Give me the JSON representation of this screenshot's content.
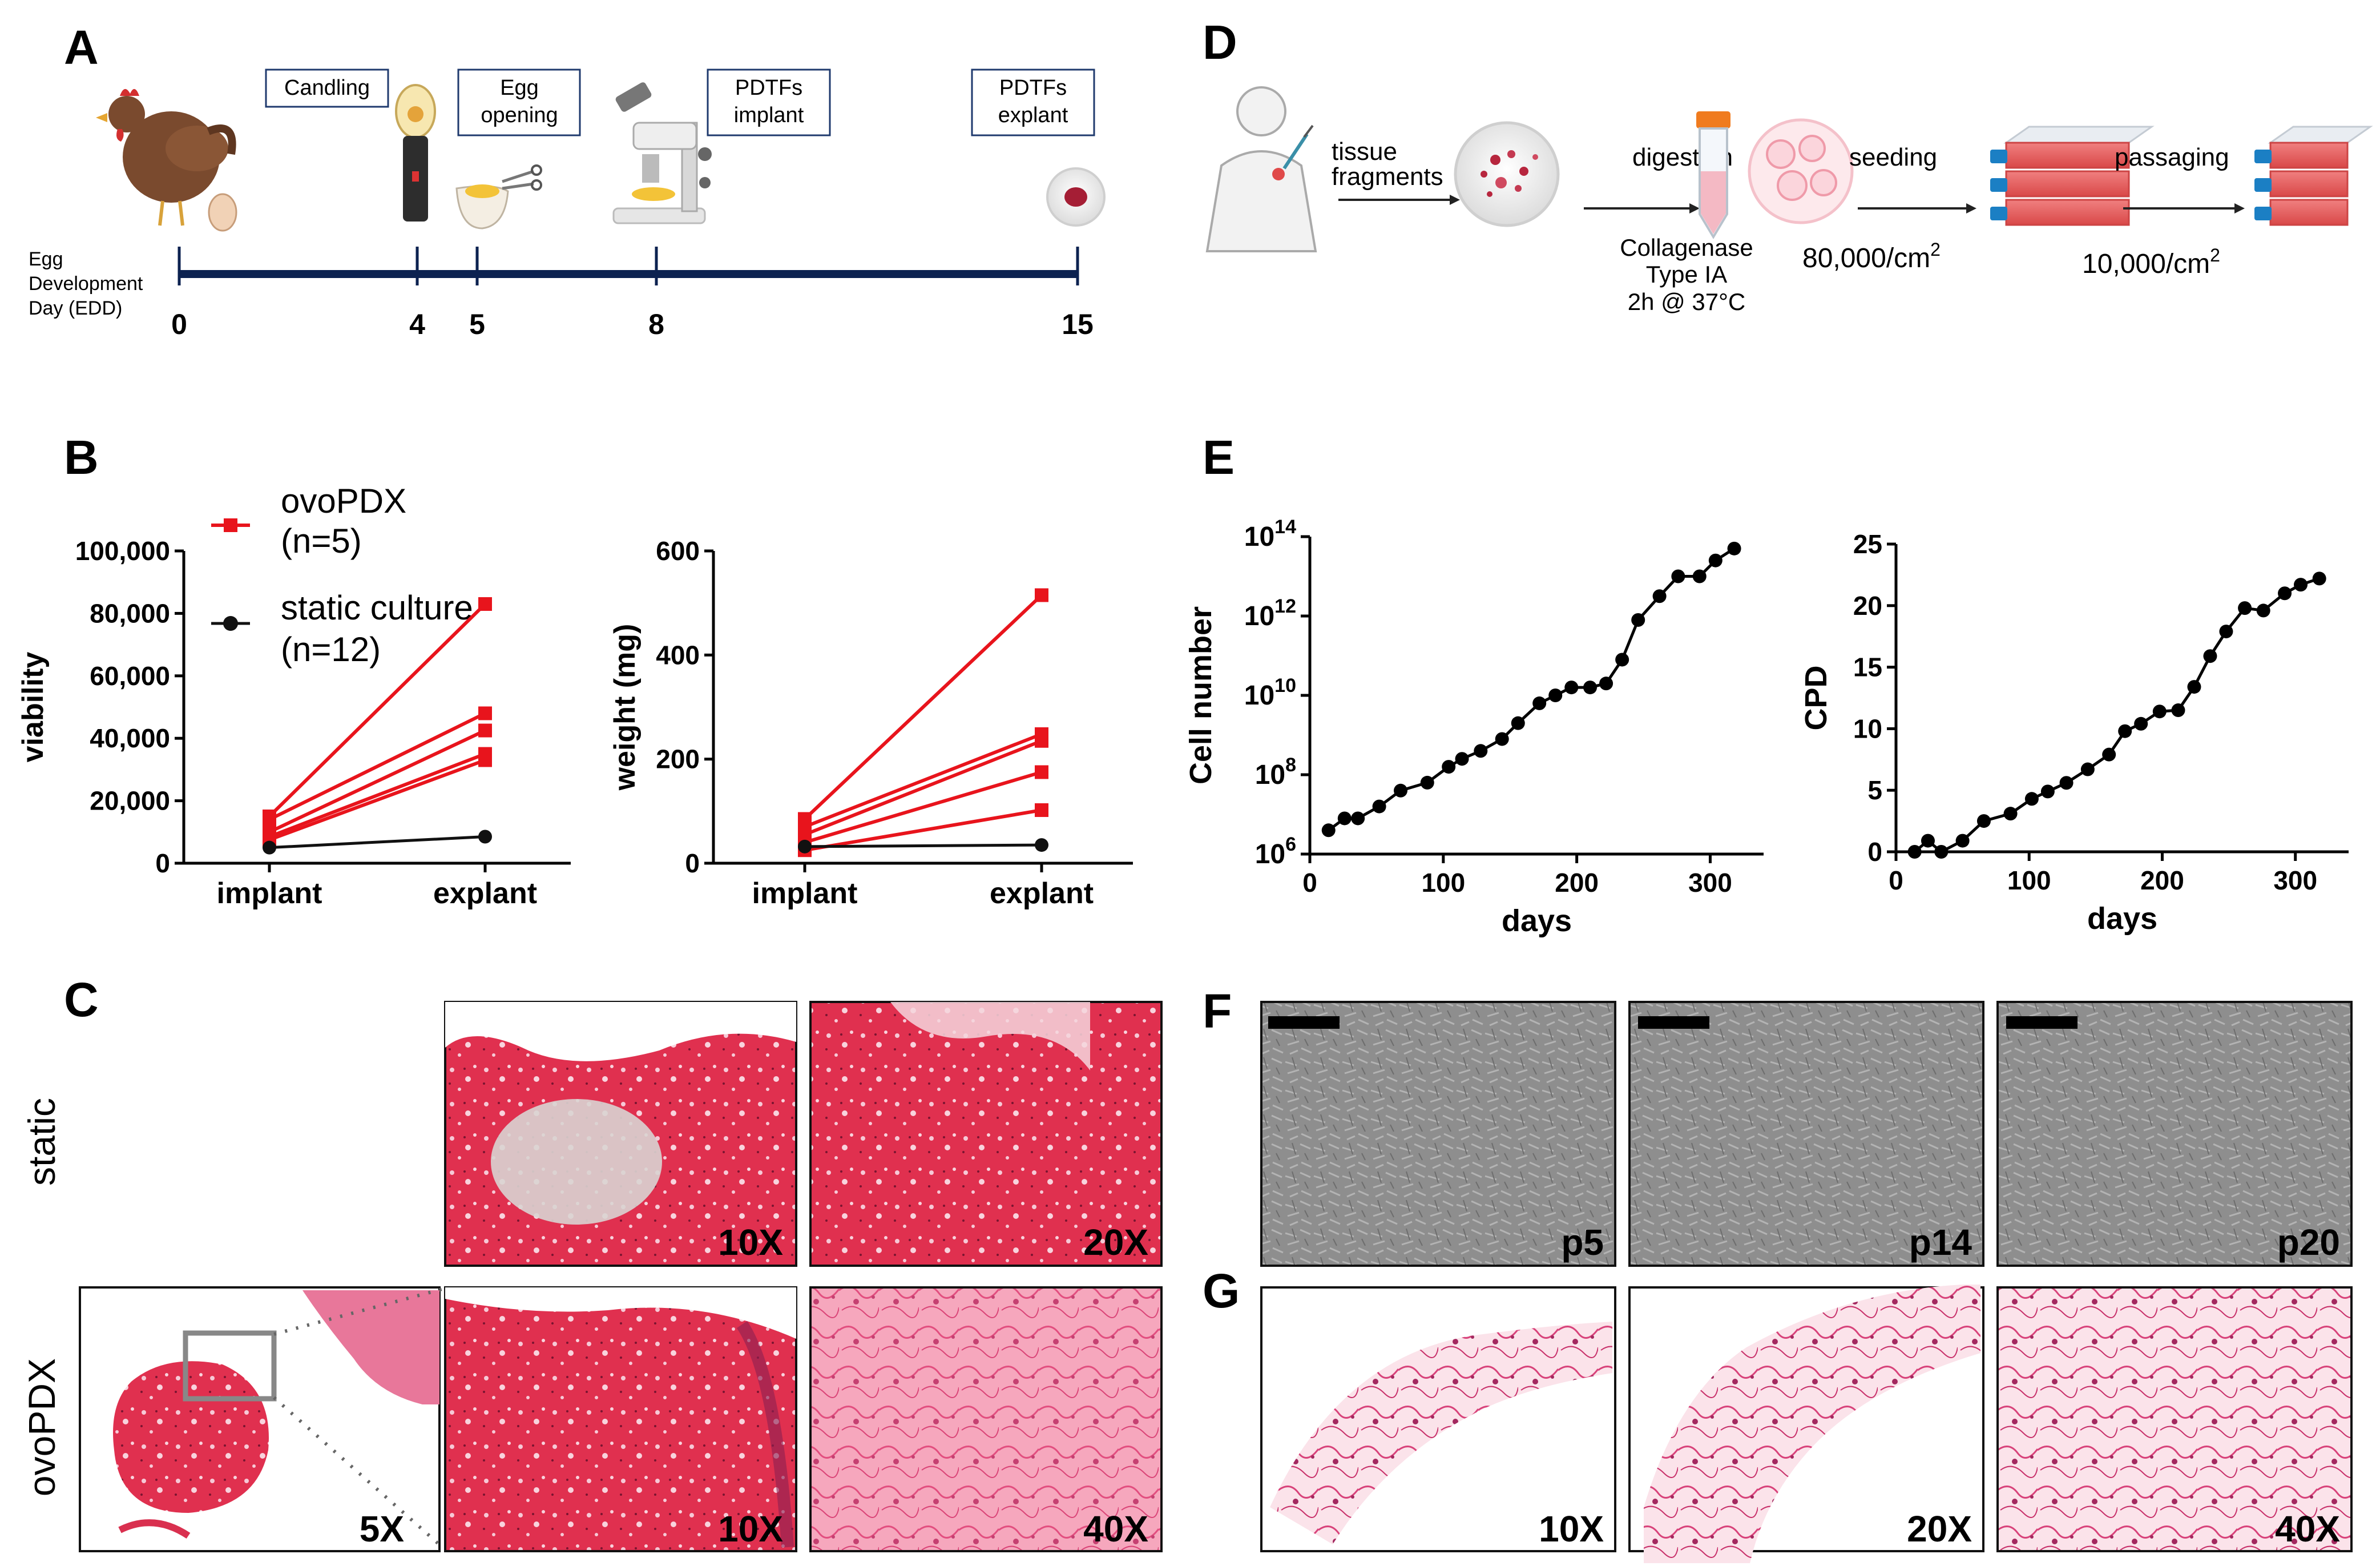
{
  "colors": {
    "ovo": "#e8141c",
    "static": "#111111",
    "navy": "#0c2250",
    "stain": "#e0304f",
    "stain_light": "#f3b7c9",
    "micro": "#8f8f8f"
  },
  "panels": {
    "A": "A",
    "B": "B",
    "C": "C",
    "D": "D",
    "E": "E",
    "F": "F",
    "G": "G"
  },
  "timeline": {
    "axis_label": [
      "Egg",
      "Development",
      "Day (EDD)"
    ],
    "ticks": [
      "0",
      "4",
      "5",
      "8",
      "15"
    ],
    "steps": [
      {
        "lines": [
          "Candling"
        ]
      },
      {
        "lines": [
          "Egg",
          "opening"
        ]
      },
      {
        "lines": [
          "PDTFs",
          "implant"
        ]
      },
      {
        "lines": [
          "PDTFs",
          "explant"
        ]
      }
    ],
    "icons": [
      "hen-icon",
      "egg-icon",
      "candling-lamp-icon",
      "open-egg-icon",
      "microscope-icon",
      "petri-dish-icon"
    ]
  },
  "workflow": {
    "labels": {
      "tissue": [
        "tissue",
        "fragments"
      ],
      "digestion": "digestion",
      "seeding": "seeding",
      "passaging": "passaging"
    },
    "conditions": [
      "Collagenase",
      "Type IA",
      "2h @ 37°C"
    ],
    "seeding_density": {
      "value": "80,000/cm",
      "sup": "2"
    },
    "passaging_density": {
      "value": "10,000/cm",
      "sup": "2"
    },
    "icons": [
      "human-body-icon",
      "petri-dish-fragments-icon",
      "centrifuge-tube-icon",
      "cells-icon",
      "flask-stack-icon",
      "flask-stack-icon"
    ]
  },
  "chart_data": [
    {
      "id": "viability",
      "type": "line",
      "legend": [
        {
          "name": [
            "ovoPDX",
            "(n=5)"
          ],
          "marker": "square",
          "color": "#e8141c"
        },
        {
          "name": [
            "static culture",
            "(n=12)"
          ],
          "marker": "circle",
          "color": "#111111"
        }
      ],
      "ylabel": "viability",
      "categories": [
        "implant",
        "explant"
      ],
      "ylim": [
        0,
        100000
      ],
      "ytick_values": [
        0,
        20000,
        40000,
        60000,
        80000,
        100000
      ],
      "ytick_labels": [
        "0",
        "20,000",
        "40,000",
        "60,000",
        "80,000",
        "100,000"
      ],
      "series": [
        {
          "name": "ovoPDX 1",
          "values": [
            15000,
            83000
          ]
        },
        {
          "name": "ovoPDX 2",
          "values": [
            14000,
            48000
          ]
        },
        {
          "name": "ovoPDX 3",
          "values": [
            10000,
            42500
          ]
        },
        {
          "name": "ovoPDX 4",
          "values": [
            8500,
            35000
          ]
        },
        {
          "name": "ovoPDX 5",
          "values": [
            7500,
            33000
          ]
        },
        {
          "name": "static culture",
          "values": [
            5000,
            8500
          ]
        }
      ]
    },
    {
      "id": "weight",
      "type": "line",
      "ylabel": "weight (mg)",
      "categories": [
        "implant",
        "explant"
      ],
      "ylim": [
        0,
        600
      ],
      "ytick_values": [
        0,
        200,
        400,
        600
      ],
      "ytick_labels": [
        "0",
        "200",
        "400",
        "600"
      ],
      "series": [
        {
          "name": "ovoPDX 1",
          "values": [
            85,
            515
          ]
        },
        {
          "name": "ovoPDX 2",
          "values": [
            70,
            248
          ]
        },
        {
          "name": "ovoPDX 3",
          "values": [
            55,
            235
          ]
        },
        {
          "name": "ovoPDX 4",
          "values": [
            40,
            175
          ]
        },
        {
          "name": "ovoPDX 5",
          "values": [
            25,
            102
          ]
        },
        {
          "name": "static culture",
          "values": [
            32,
            35
          ]
        }
      ]
    },
    {
      "id": "cell-number",
      "type": "line",
      "ylabel": "Cell number",
      "xlabel": "days",
      "y_scale": "log10",
      "ylim": [
        6,
        14
      ],
      "ytick_values": [
        6,
        8,
        10,
        12,
        14
      ],
      "ytick_base": "10",
      "ytick_exponents": [
        "6",
        "8",
        "10",
        "12",
        "14"
      ],
      "xlim": [
        0,
        340
      ],
      "xtick_values": [
        0,
        100,
        200,
        300
      ],
      "xtick_labels": [
        "0",
        "100",
        "200",
        "300"
      ],
      "series": [
        {
          "name": "cells",
          "x": [
            14,
            26,
            36,
            52,
            68,
            88,
            104,
            114,
            128,
            144,
            156,
            172,
            184,
            196,
            210,
            222,
            234,
            246,
            262,
            276,
            292,
            304,
            318
          ],
          "values": [
            6.6,
            6.9,
            6.9,
            7.2,
            7.6,
            7.8,
            8.2,
            8.4,
            8.6,
            8.9,
            9.3,
            9.8,
            10.0,
            10.2,
            10.2,
            10.3,
            10.9,
            11.9,
            12.5,
            13.0,
            13.0,
            13.4,
            13.7
          ]
        }
      ]
    },
    {
      "id": "cpd",
      "type": "line",
      "ylabel": "CPD",
      "xlabel": "days",
      "ylim": [
        0,
        25
      ],
      "ytick_values": [
        0,
        5,
        10,
        15,
        20,
        25
      ],
      "ytick_labels": [
        "0",
        "5",
        "10",
        "15",
        "20",
        "25"
      ],
      "xlim": [
        0,
        340
      ],
      "xtick_values": [
        0,
        100,
        200,
        300
      ],
      "xtick_labels": [
        "0",
        "100",
        "200",
        "300"
      ],
      "series": [
        {
          "name": "CPD",
          "x": [
            14,
            24,
            34,
            50,
            66,
            86,
            102,
            114,
            128,
            144,
            160,
            172,
            184,
            198,
            212,
            224,
            236,
            248,
            262,
            276,
            292,
            304,
            318
          ],
          "values": [
            0,
            0.9,
            0,
            0.9,
            2.5,
            3.1,
            4.3,
            4.9,
            5.6,
            6.7,
            7.9,
            9.8,
            10.4,
            11.4,
            11.5,
            13.4,
            15.9,
            17.9,
            19.8,
            19.6,
            21.0,
            21.7,
            22.2
          ]
        }
      ]
    }
  ],
  "histology": {
    "row_labels": [
      "static",
      "ovoPDX"
    ],
    "static_tiles": [
      "10X",
      "20X"
    ],
    "ovo_tiles": [
      "5X",
      "10X",
      "40X"
    ]
  },
  "micrographs": {
    "labels": [
      "p5",
      "p14",
      "p20"
    ]
  },
  "staining": {
    "labels": [
      "10X",
      "20X",
      "40X"
    ]
  }
}
